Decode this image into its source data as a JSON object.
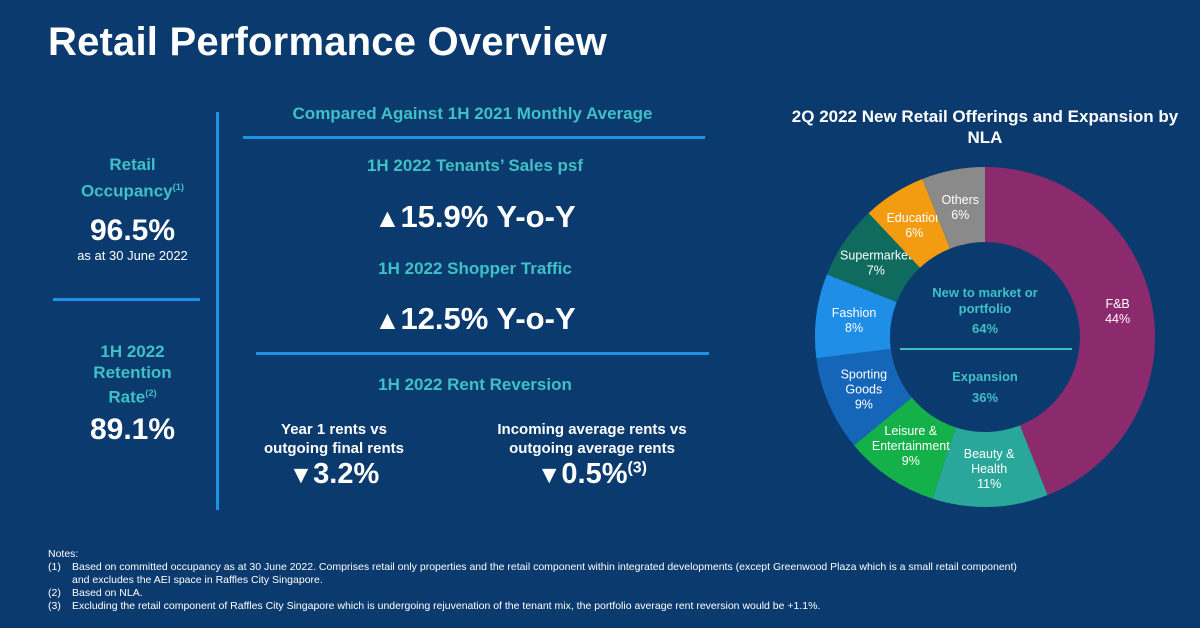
{
  "title": "Retail Performance Overview",
  "occupancy": {
    "label": "Retail Occupancy",
    "note_ref": "(1)",
    "value": "96.5%",
    "sub": "as at 30 June 2022"
  },
  "retention": {
    "label_line1": "1H 2022",
    "label_line2": "Retention",
    "label_line3": "Rate",
    "note_ref": "(2)",
    "value": "89.1%"
  },
  "compared_heading": "Compared Against 1H 2021 Monthly Average",
  "tenant_sales": {
    "heading": "1H 2022 Tenants’ Sales psf",
    "arrow": "▲",
    "value": "15.9% Y-o-Y"
  },
  "shopper_traffic": {
    "heading": "1H 2022 Shopper Traffic",
    "arrow": "▲",
    "value": "12.5% Y-o-Y"
  },
  "rent_reversion": {
    "heading": "1H 2022 Rent Reversion",
    "year1": {
      "label_line1": "Year 1 rents vs",
      "label_line2": "outgoing final rents",
      "arrow": "▼",
      "value": "3.2%"
    },
    "incoming": {
      "label_line1": "Incoming average rents vs",
      "label_line2": "outgoing average rents",
      "arrow": "▼",
      "value": "0.5%",
      "note_ref": "(3)"
    }
  },
  "chart_data": {
    "type": "pie",
    "title": "2Q 2022 New Retail Offerings and Expansion by NLA",
    "categories": [
      "F&B",
      "Beauty & Health",
      "Leisure & Entertainment",
      "Sporting Goods",
      "Fashion",
      "Supermarket",
      "Education",
      "Others"
    ],
    "values": [
      44,
      11,
      9,
      9,
      8,
      7,
      6,
      6
    ],
    "colors": [
      "#8c2a6e",
      "#2aa79b",
      "#14b14a",
      "#1565b8",
      "#1e8ee6",
      "#0e6b5e",
      "#f39c12",
      "#8a8a8a"
    ],
    "label_lines": [
      [
        "F&B"
      ],
      [
        "Beauty &",
        "Health"
      ],
      [
        "Leisure &",
        "Entertainment"
      ],
      [
        "Sporting",
        "Goods"
      ],
      [
        "Fashion"
      ],
      [
        "Supermarket"
      ],
      [
        "Education"
      ],
      [
        "Others"
      ]
    ],
    "percent_labels": [
      "44%",
      "11%",
      "9%",
      "9%",
      "8%",
      "7%",
      "6%",
      "6%"
    ],
    "center": {
      "top_label_line1": "New to market or",
      "top_label_line2": "portfolio",
      "top_value": "64%",
      "bottom_label": "Expansion",
      "bottom_value": "36%"
    }
  },
  "notes": {
    "heading": "Notes:",
    "items": [
      {
        "num": "(1)",
        "line1": "Based on committed occupancy as at 30 June 2022. Comprises retail only properties and the retail component within integrated developments (except Greenwood Plaza which is a small retail component)",
        "line2": "and excludes the AEI space in Raffles City Singapore."
      },
      {
        "num": "(2)",
        "line1": "Based on NLA.",
        "line2": ""
      },
      {
        "num": "(3)",
        "line1": "Excluding the retail component of Raffles City Singapore which is undergoing rejuvenation of the tenant mix, the portfolio average rent reversion would be +1.1%.",
        "line2": ""
      }
    ]
  }
}
